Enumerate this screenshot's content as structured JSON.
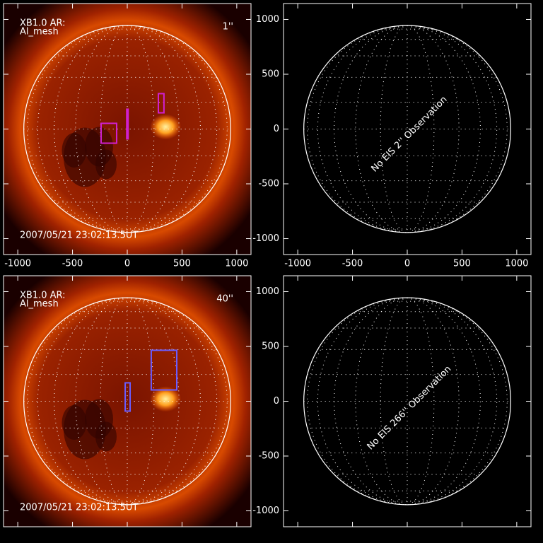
{
  "chart_data": [
    {
      "type": "solar-image",
      "title": "XB1.0 AR:",
      "subtitle": "Al_mesh",
      "date": "2007/05/21 23:02:13.5UT",
      "label": "1''",
      "label_color": "#d020d0",
      "xlim": [
        -1130,
        1130
      ],
      "ylim": [
        -1145,
        1145
      ],
      "xticks": [
        -1000,
        -500,
        0,
        500,
        1000
      ],
      "yticks": [
        -1000,
        -500,
        0,
        500,
        1000
      ],
      "show_xtick_labels": true,
      "show_ytick_labels": false,
      "limb_radius": 945,
      "boxes": [
        {
          "x": [
            -239,
            -97
          ],
          "y": [
            -129,
            52
          ]
        },
        {
          "x": [
            -5,
            5
          ],
          "y": [
            -90,
            181
          ]
        },
        {
          "x": [
            284,
            335
          ],
          "y": [
            148,
            323
          ]
        }
      ]
    },
    {
      "type": "empty",
      "annotation": "No EIS 2'' Observation",
      "xlim": [
        -1130,
        1130
      ],
      "ylim": [
        -1145,
        1145
      ],
      "xticks": [
        -1000,
        -500,
        0,
        500,
        1000
      ],
      "yticks": [
        -1000,
        -500,
        0,
        500,
        1000
      ],
      "show_xtick_labels": true,
      "show_ytick_labels": true,
      "limb_radius": 945
    },
    {
      "type": "solar-image",
      "title": "XB1.0 AR:",
      "subtitle": "Al_mesh",
      "date": "2007/05/21 23:02:13.5UT",
      "label": "40''",
      "label_color": "#6a5cff",
      "xlim": [
        -1130,
        1130
      ],
      "ylim": [
        -1145,
        1145
      ],
      "xticks": [
        -1000,
        -500,
        0,
        500,
        1000
      ],
      "yticks": [
        -1000,
        -500,
        0,
        500,
        1000
      ],
      "show_xtick_labels": false,
      "show_ytick_labels": false,
      "limb_radius": 945,
      "boxes": [
        {
          "x": [
            219,
            452
          ],
          "y": [
            103,
            465
          ]
        },
        {
          "x": [
            -19,
            26
          ],
          "y": [
            -90,
            168
          ]
        }
      ]
    },
    {
      "type": "empty",
      "annotation": "No EIS 266'' Observation",
      "xlim": [
        -1130,
        1130
      ],
      "ylim": [
        -1145,
        1145
      ],
      "xticks": [
        -1000,
        -500,
        0,
        500,
        1000
      ],
      "yticks": [
        -1000,
        -500,
        0,
        500,
        1000
      ],
      "show_xtick_labels": false,
      "show_ytick_labels": true,
      "limb_radius": 945
    }
  ]
}
